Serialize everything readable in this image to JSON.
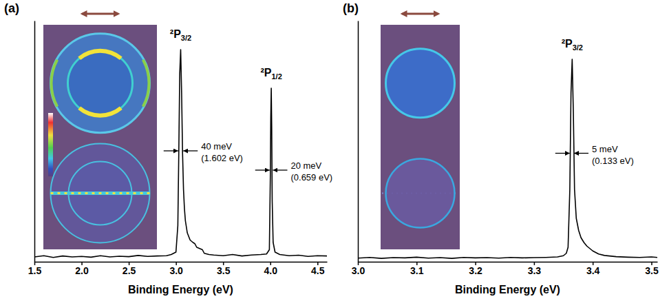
{
  "chart_data": [
    {
      "type": "line",
      "panel": "(a)",
      "x_label": "Binding Energy (eV)",
      "color": "#000000",
      "xlim": [
        1.5,
        4.6
      ],
      "ylim": [
        0,
        1
      ],
      "xticks": [
        1.5,
        {
          "value": 2,
          "label": "2.0"
        },
        2.5,
        {
          "value": 3,
          "label": "3.0"
        },
        3.5,
        {
          "value": 4,
          "label": "4.0"
        },
        4.5
      ],
      "tick_labels": "x",
      "grid": false,
      "x": [
        1.5,
        1.6,
        1.7,
        1.8,
        1.9,
        2.0,
        2.1,
        2.2,
        2.3,
        2.4,
        2.5,
        2.6,
        2.7,
        2.8,
        2.9,
        2.95,
        3.0,
        3.02,
        3.03,
        3.04,
        3.05,
        3.06,
        3.07,
        3.08,
        3.09,
        3.1,
        3.12,
        3.15,
        3.18,
        3.2,
        3.22,
        3.25,
        3.28,
        3.3,
        3.35,
        3.4,
        3.5,
        3.6,
        3.7,
        3.8,
        3.9,
        3.96,
        3.99,
        4.0,
        4.005,
        4.01,
        4.015,
        4.02,
        4.03,
        4.05,
        4.1,
        4.2,
        4.3,
        4.4,
        4.5,
        4.6
      ],
      "values": [
        0.02,
        0.025,
        0.018,
        0.024,
        0.02,
        0.022,
        0.019,
        0.025,
        0.02,
        0.023,
        0.021,
        0.026,
        0.022,
        0.024,
        0.025,
        0.03,
        0.04,
        0.15,
        0.45,
        0.78,
        0.88,
        0.7,
        0.45,
        0.3,
        0.22,
        0.17,
        0.12,
        0.09,
        0.08,
        0.075,
        0.06,
        0.055,
        0.05,
        0.035,
        0.03,
        0.028,
        0.025,
        0.03,
        0.024,
        0.028,
        0.03,
        0.032,
        0.05,
        0.35,
        0.6,
        0.72,
        0.55,
        0.25,
        0.08,
        0.04,
        0.03,
        0.025,
        0.027,
        0.022,
        0.025,
        0.024
      ],
      "labels": [
        {
          "text": "²P3/2",
          "x": 3.05,
          "y": 0.93
        },
        {
          "text": "²P1/2",
          "x": 4.01,
          "y": 0.77
        }
      ],
      "widths": [
        {
          "text": "40 meV",
          "text2": "(1.602 eV)",
          "x": 3.05,
          "width": 0.04,
          "y": 0.46
        },
        {
          "text": "20 meV",
          "text2": "(0.659 eV)",
          "x": 4.01,
          "width": 0.02,
          "y": 0.38
        }
      ]
    },
    {
      "type": "line",
      "panel": "(b)",
      "x_label": "Binding Energy (eV)",
      "color": "#000000",
      "xlim": [
        3.0,
        3.51
      ],
      "ylim": [
        0,
        1
      ],
      "xticks": [
        {
          "value": 3,
          "label": "3.0"
        },
        3.1,
        3.2,
        3.3,
        3.4,
        3.5
      ],
      "tick_labels": "x",
      "grid": false,
      "x": [
        3.0,
        3.02,
        3.04,
        3.06,
        3.08,
        3.1,
        3.12,
        3.14,
        3.16,
        3.18,
        3.2,
        3.22,
        3.24,
        3.26,
        3.28,
        3.3,
        3.32,
        3.34,
        3.35,
        3.355,
        3.358,
        3.361,
        3.363,
        3.365,
        3.367,
        3.369,
        3.372,
        3.376,
        3.38,
        3.385,
        3.39,
        3.4,
        3.41,
        3.42,
        3.44,
        3.46,
        3.48,
        3.5,
        3.51
      ],
      "values": [
        0.015,
        0.018,
        0.014,
        0.017,
        0.016,
        0.019,
        0.015,
        0.017,
        0.014,
        0.018,
        0.016,
        0.017,
        0.015,
        0.018,
        0.016,
        0.017,
        0.018,
        0.02,
        0.025,
        0.035,
        0.06,
        0.3,
        0.7,
        0.84,
        0.62,
        0.3,
        0.18,
        0.13,
        0.1,
        0.08,
        0.065,
        0.045,
        0.032,
        0.026,
        0.021,
        0.019,
        0.018,
        0.02,
        0.018
      ],
      "labels": [
        {
          "text": "²P3/2",
          "x": 3.365,
          "y": 0.89
        }
      ],
      "widths": [
        {
          "text": "5 meV",
          "text2": "(0.133 eV)",
          "x": 3.3645,
          "width": 0.005,
          "y": 0.45
        }
      ]
    }
  ]
}
